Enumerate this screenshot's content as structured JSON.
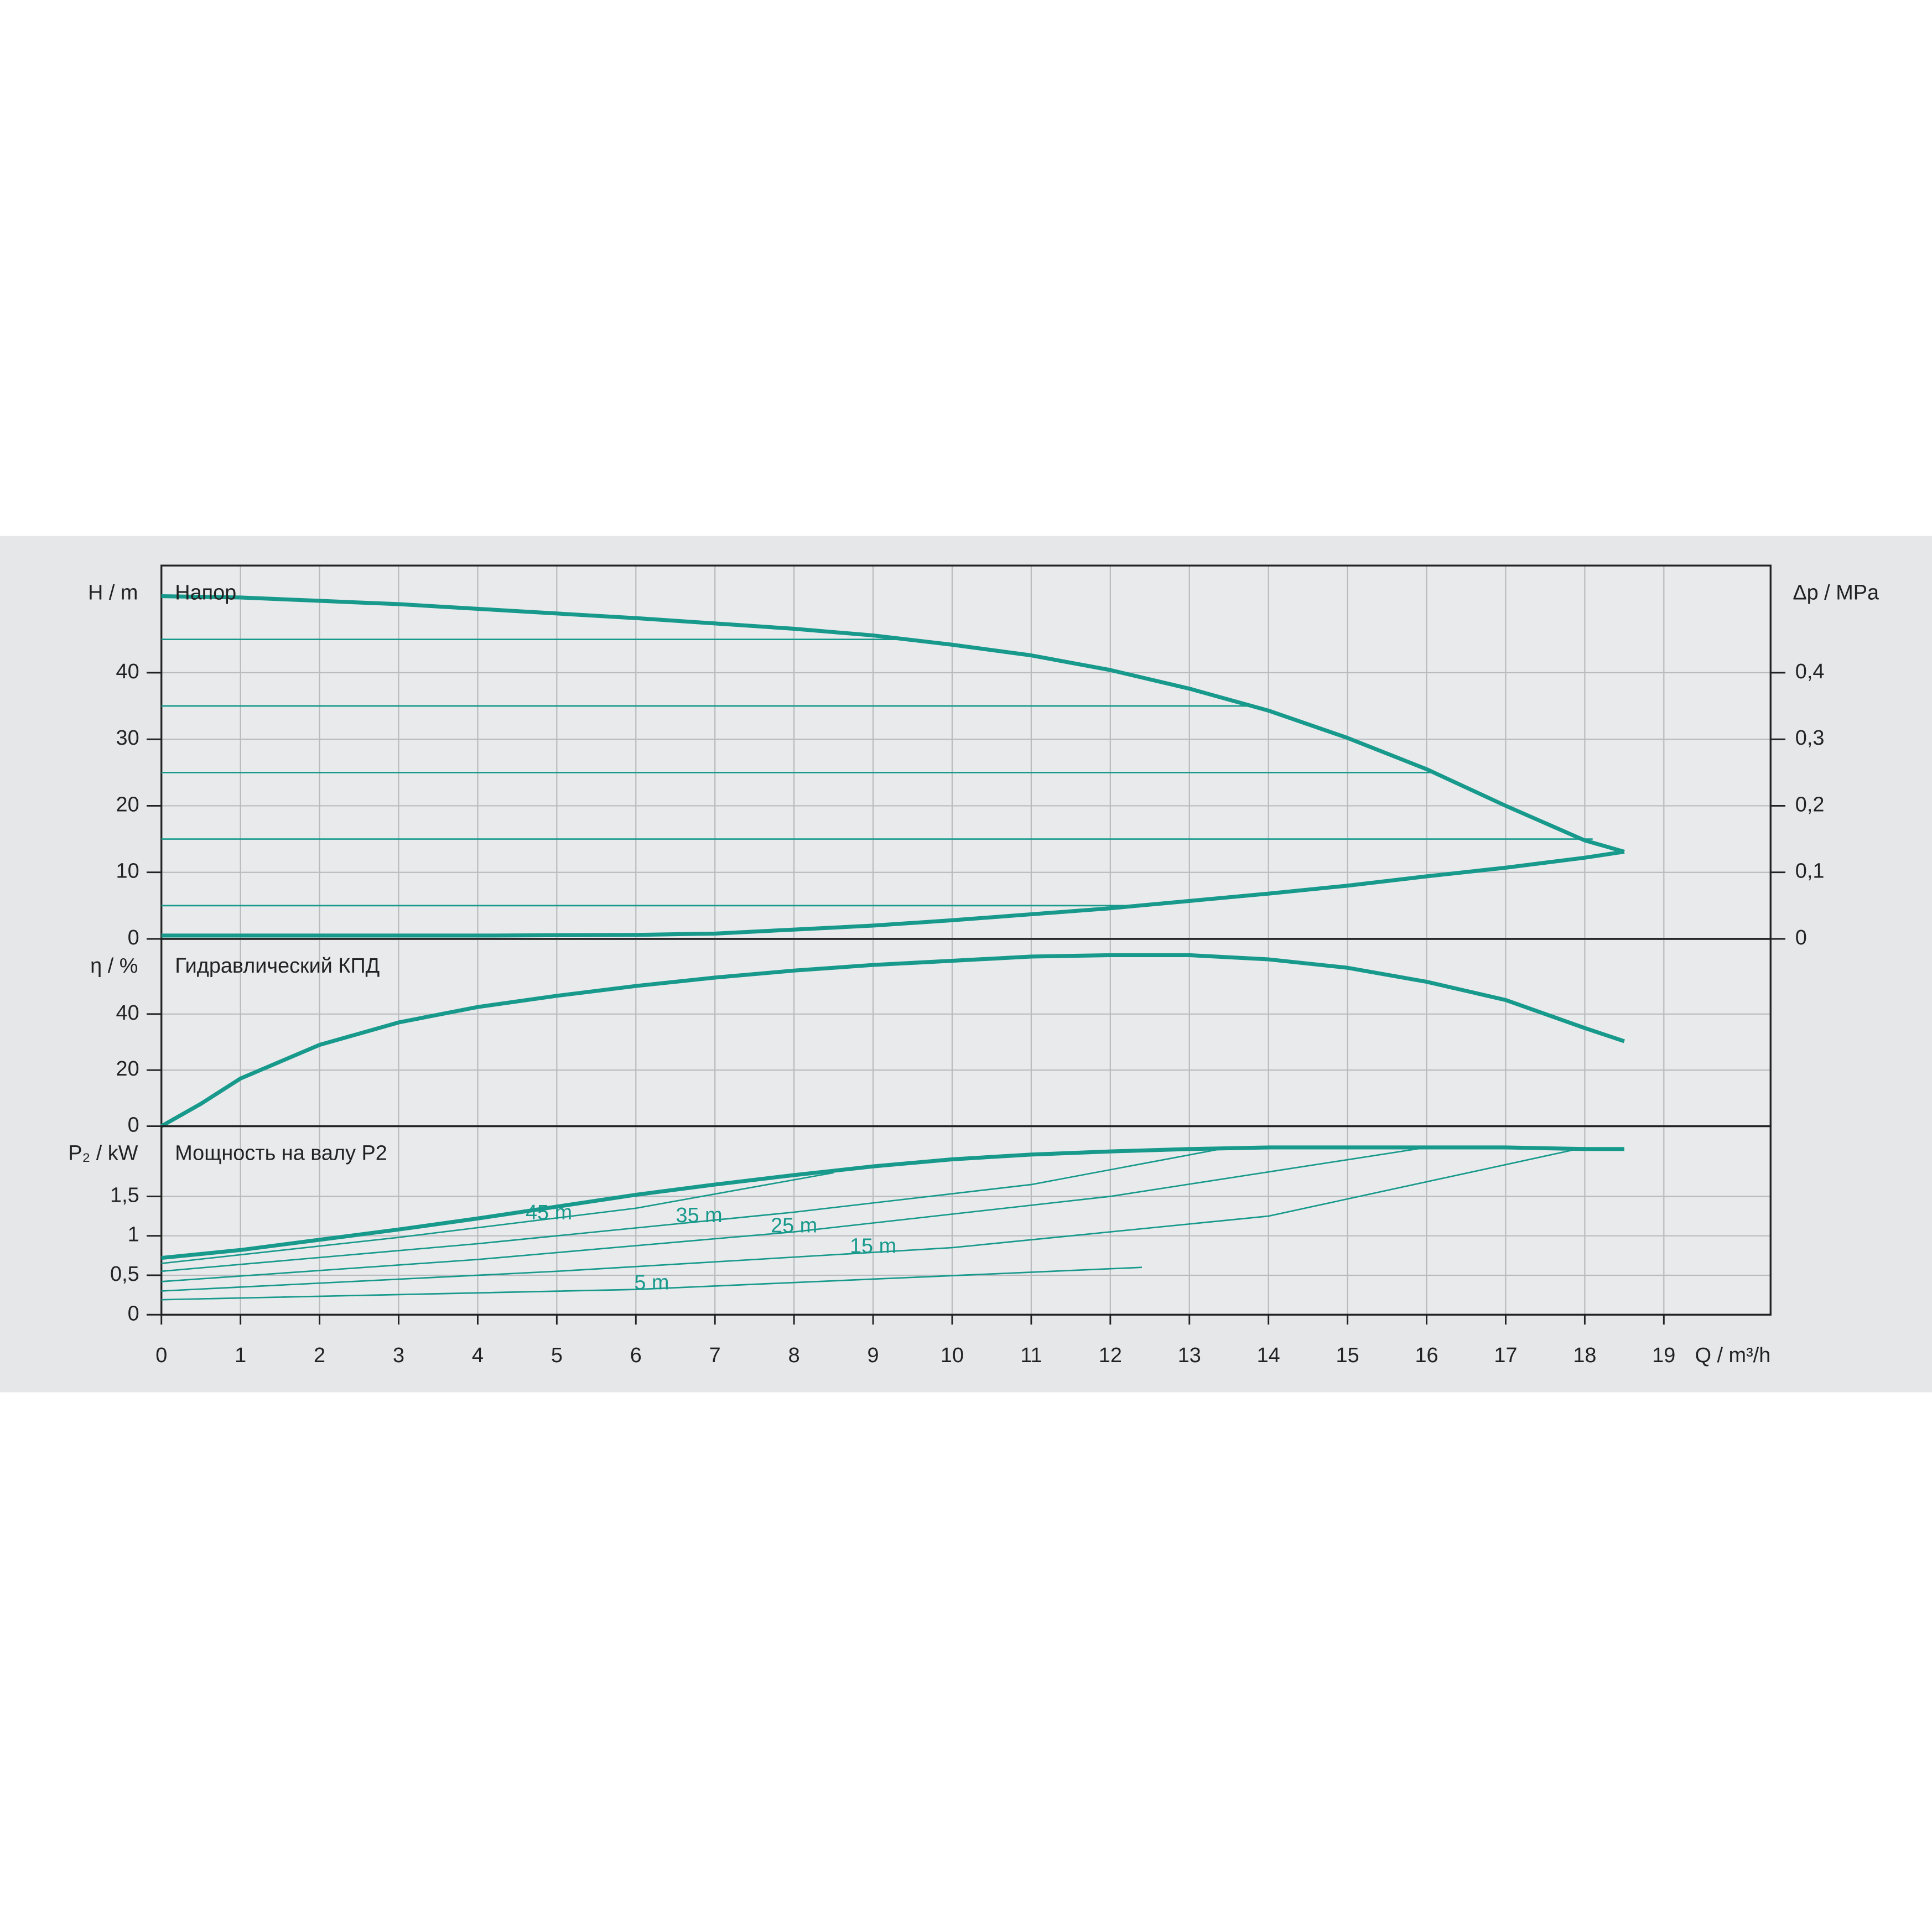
{
  "chart_data": [
    {
      "type": "line",
      "label": "Напор",
      "ylabel": "H / m",
      "y2label": "Δp / MPa",
      "xlim": [
        0,
        20.35
      ],
      "xticks": [
        0,
        1,
        2,
        3,
        4,
        5,
        6,
        7,
        8,
        9,
        10,
        11,
        12,
        13,
        14,
        15,
        16,
        17,
        18,
        19
      ],
      "ylim": [
        0,
        56.1
      ],
      "yticks": [
        0,
        10,
        20,
        30,
        40
      ],
      "y2lim": [
        0,
        0.561
      ],
      "y2ticks": [
        0,
        {
          "value": 0.1,
          "label": "0,1"
        },
        {
          "value": 0.2,
          "label": "0,2"
        },
        {
          "value": 0.3,
          "label": "0,3"
        },
        {
          "value": 0.4,
          "label": "0,4"
        }
      ],
      "grid": true,
      "color": "#17998c",
      "series": [
        {
          "linestyle": "thick",
          "x": [
            0,
            1,
            2,
            3,
            4,
            5,
            6,
            7,
            8,
            9,
            10,
            11,
            12,
            13,
            14,
            15,
            16,
            17,
            18,
            18.5
          ],
          "values": [
            51.5,
            51.3,
            50.8,
            50.3,
            49.6,
            48.9,
            48.2,
            47.4,
            46.6,
            45.6,
            44.2,
            42.6,
            40.4,
            37.6,
            34.3,
            30.2,
            25.5,
            20.0,
            14.8,
            13.1
          ]
        },
        {
          "linestyle": "thick",
          "x": [
            0,
            4,
            6,
            7,
            8,
            9,
            10,
            11,
            12,
            13,
            14,
            15,
            16,
            17,
            18,
            18.5
          ],
          "values": [
            0.5,
            0.5,
            0.6,
            0.8,
            1.4,
            2.0,
            2.8,
            3.7,
            4.6,
            5.7,
            6.8,
            8.0,
            9.4,
            10.7,
            12.2,
            13.1
          ]
        },
        {
          "linestyle": "thin",
          "x": [
            0,
            9.4
          ],
          "values": [
            45,
            45
          ]
        },
        {
          "linestyle": "thin",
          "x": [
            0,
            13.8
          ],
          "values": [
            35,
            35
          ]
        },
        {
          "linestyle": "thin",
          "x": [
            0,
            16.1
          ],
          "values": [
            25,
            25
          ]
        },
        {
          "linestyle": "thin",
          "x": [
            0,
            18.1
          ],
          "values": [
            15,
            15
          ]
        },
        {
          "linestyle": "thin",
          "x": [
            0,
            12.4
          ],
          "values": [
            5,
            5
          ]
        }
      ]
    },
    {
      "type": "line",
      "label": "Гидравлический КПД",
      "ylabel": "η / %",
      "xlim": [
        0,
        20.35
      ],
      "xticks": [
        0,
        1,
        2,
        3,
        4,
        5,
        6,
        7,
        8,
        9,
        10,
        11,
        12,
        13,
        14,
        15,
        16,
        17,
        18,
        19
      ],
      "ylim": [
        0,
        66.8
      ],
      "yticks": [
        0,
        20,
        40
      ],
      "grid": true,
      "color": "#17998c",
      "series": [
        {
          "linestyle": "thick",
          "x": [
            0,
            0.5,
            1,
            2,
            3,
            4,
            5,
            6,
            7,
            8,
            9,
            10,
            11,
            12,
            13,
            14,
            15,
            16,
            17,
            18,
            18.5
          ],
          "values": [
            0,
            8,
            17,
            29,
            37,
            42.5,
            46.5,
            50,
            53,
            55.5,
            57.5,
            59,
            60.5,
            61,
            61,
            59.5,
            56.5,
            51.5,
            45,
            35,
            30.3
          ]
        }
      ]
    },
    {
      "type": "line",
      "label": "Мощность на валу P2",
      "ylabel": "P₂ / kW",
      "xlabel": "Q / m³/h",
      "xlim": [
        0,
        20.35
      ],
      "xticks": [
        0,
        1,
        2,
        3,
        4,
        5,
        6,
        7,
        8,
        9,
        10,
        11,
        12,
        13,
        14,
        15,
        16,
        17,
        18,
        19
      ],
      "ylim": [
        0,
        2.39
      ],
      "yticks": [
        0,
        {
          "value": 0.5,
          "label": "0,5"
        },
        1,
        {
          "value": 1.5,
          "label": "1,5"
        }
      ],
      "grid": true,
      "color": "#17998c",
      "series": [
        {
          "linestyle": "thick",
          "x": [
            0,
            1,
            2,
            3,
            4,
            5,
            6,
            7,
            8,
            9,
            10,
            11,
            12,
            13,
            14,
            15,
            16,
            17,
            18,
            18.5
          ],
          "values": [
            0.72,
            0.82,
            0.95,
            1.08,
            1.22,
            1.37,
            1.52,
            1.65,
            1.77,
            1.88,
            1.97,
            2.03,
            2.07,
            2.1,
            2.12,
            2.12,
            2.12,
            2.12,
            2.1,
            2.1
          ]
        },
        {
          "name": "45 m",
          "linestyle": "thin",
          "x": [
            0,
            3,
            6,
            8.5
          ],
          "values": [
            0.65,
            0.98,
            1.35,
            1.8
          ]
        },
        {
          "name": "35 m",
          "linestyle": "thin",
          "x": [
            0,
            4,
            8,
            11,
            13.5
          ],
          "values": [
            0.55,
            0.9,
            1.3,
            1.65,
            2.12
          ]
        },
        {
          "name": "25 m",
          "linestyle": "thin",
          "x": [
            0,
            4,
            8,
            12,
            16
          ],
          "values": [
            0.42,
            0.7,
            1.05,
            1.5,
            2.12
          ]
        },
        {
          "name": "15 m",
          "linestyle": "thin",
          "x": [
            0,
            5,
            10,
            14,
            18
          ],
          "values": [
            0.3,
            0.55,
            0.85,
            1.25,
            2.12
          ]
        },
        {
          "name": "5 m",
          "linestyle": "thin",
          "x": [
            0,
            6,
            12.4
          ],
          "values": [
            0.19,
            0.32,
            0.6
          ]
        }
      ]
    }
  ]
}
